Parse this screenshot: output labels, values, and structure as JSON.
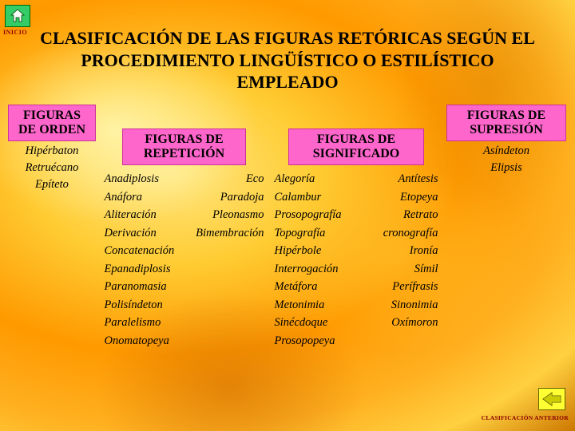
{
  "colors": {
    "heading_bg": "#ff66cc",
    "heading_border": "#cc3399",
    "home_bg": "#33cc66",
    "home_border": "#006600",
    "back_bg": "#ffff33",
    "back_border": "#666600",
    "nav_text": "#8b0000",
    "text": "#000000"
  },
  "nav": {
    "home_label": "INICIO",
    "back_label": "CLASIFICACIÓN ANTERIOR"
  },
  "title": "CLASIFICACIÓN DE LAS FIGURAS RETÓRICAS SEGÚN EL PROCEDIMIENTO LINGÜÍSTICO O ESTILÍSTICO EMPLEADO",
  "orden": {
    "heading": "FIGURAS DE ORDEN",
    "items": [
      "Hipérbaton",
      "Retruécano",
      "Epíteto"
    ]
  },
  "repeticion": {
    "heading": "FIGURAS DE REPETICIÓN",
    "rows": [
      [
        "Anadiplosis",
        "Eco"
      ],
      [
        "Anáfora",
        "Paradoja"
      ],
      [
        "Aliteración",
        "Pleonasmo"
      ],
      [
        "Derivación",
        "Bimembración"
      ],
      [
        "Concatenación",
        ""
      ],
      [
        "Epanadiplosis",
        ""
      ],
      [
        "Paranomasia",
        ""
      ],
      [
        "Polisíndeton",
        ""
      ],
      [
        "Paralelismo",
        ""
      ],
      [
        "Onomatopeya",
        ""
      ]
    ]
  },
  "significado": {
    "heading": "FIGURAS DE SIGNIFICADO",
    "rows": [
      [
        "Alegoría",
        "Antítesis"
      ],
      [
        "Calambur",
        "Etopeya"
      ],
      [
        "Prosopografía",
        "Retrato"
      ],
      [
        "Topografía",
        "cronografía"
      ],
      [
        "Hipérbole",
        "Ironía"
      ],
      [
        "Interrogación",
        "Símil"
      ],
      [
        "Metáfora",
        "Perífrasis"
      ],
      [
        "Metonimia",
        "Sinonimia"
      ],
      [
        "Sinécdoque",
        "Oxímoron"
      ],
      [
        "Prosopopeya",
        ""
      ]
    ]
  },
  "supresion": {
    "heading": "FIGURAS DE SUPRESIÓN",
    "items": [
      "Asíndeton",
      "Elipsis"
    ]
  }
}
